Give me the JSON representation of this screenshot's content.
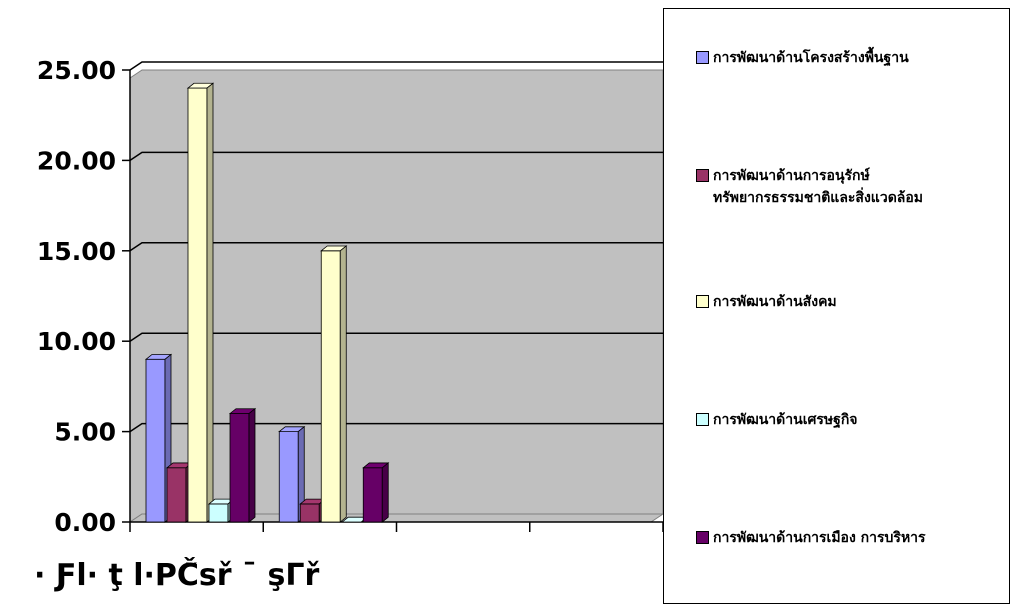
{
  "chart_data": {
    "type": "bar",
    "title": "",
    "xlabel": "· Ƒl· ţ l·PČ̌sř ¯ şΓř",
    "ylabel": "",
    "ylim": [
      0,
      25
    ],
    "yticks": [
      "0.00",
      "5.00",
      "10.00",
      "15.00",
      "20.00",
      "25.00"
    ],
    "categories": [
      "",
      "",
      "",
      ""
    ],
    "series": [
      {
        "name": "การพัฒนาด้านโครงสร้างพื้นฐาน",
        "color": "#9999ff",
        "values": [
          9,
          5,
          null,
          null
        ]
      },
      {
        "name": "การพัฒนาด้านการอนุรักษ์\nทรัพยากรธรรมชาติและสิ่งแวดล้อม",
        "color": "#993366",
        "values": [
          3,
          1,
          null,
          null
        ]
      },
      {
        "name": "การพัฒนาด้านสังคม",
        "color": "#ffffcc",
        "values": [
          24,
          15,
          null,
          null
        ]
      },
      {
        "name": "การพัฒนาด้านเศรษฐกิจ",
        "color": "#ccffff",
        "values": [
          1,
          0,
          null,
          null
        ]
      },
      {
        "name": "การพัฒนาด้านการเมือง  การบริหาร",
        "color": "#660066",
        "values": [
          6,
          3,
          null,
          null
        ]
      }
    ],
    "grid": true,
    "plot_background": "#c0c0c0",
    "legend_position": "right"
  }
}
